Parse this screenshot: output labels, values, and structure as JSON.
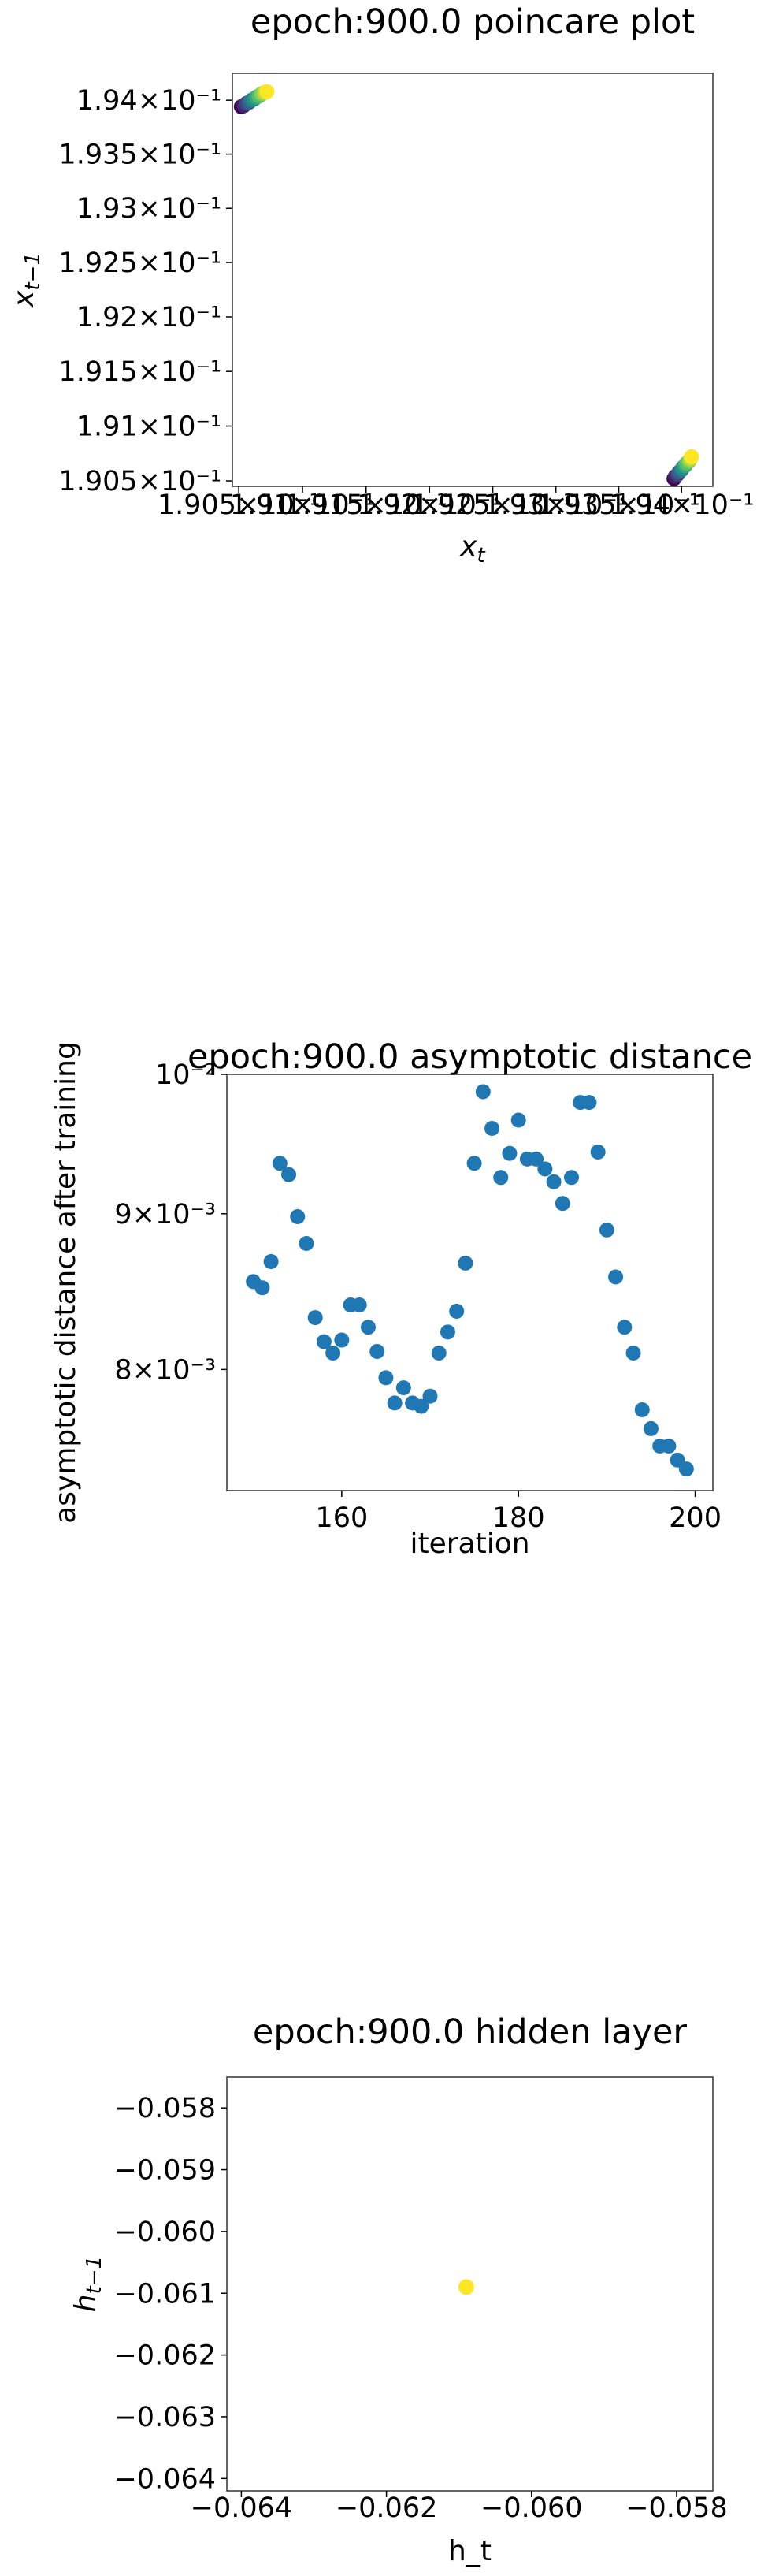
{
  "chart_data": [
    {
      "type": "scatter",
      "title": "epoch:900.0 poincare plot",
      "xlabel": "x_t",
      "ylabel": "x_{t-1}",
      "xscale": "log",
      "yscale": "log",
      "xlim": [
        0.19045,
        0.19425
      ],
      "ylim": [
        0.19045,
        0.19425
      ],
      "x_tick_values": [
        0.1905,
        0.191,
        0.1915,
        0.192,
        0.1925,
        0.193,
        0.1935,
        0.194
      ],
      "y_tick_values": [
        0.1905,
        0.191,
        0.1915,
        0.192,
        0.1925,
        0.193,
        0.1935,
        0.194
      ],
      "x_tick_labels": [
        "1.905×10⁻¹",
        "1.91×10⁻¹",
        "1.915×10⁻¹",
        "1.92×10⁻¹",
        "1.925×10⁻¹",
        "1.93×10⁻¹",
        "1.935×10⁻¹",
        "1.94×10⁻¹"
      ],
      "y_tick_labels": [
        "1.905×10⁻¹",
        "1.91×10⁻¹",
        "1.915×10⁻¹",
        "1.92×10⁻¹",
        "1.925×10⁻¹",
        "1.93×10⁻¹",
        "1.935×10⁻¹",
        "1.94×10⁻¹"
      ],
      "colormap": "viridis",
      "series": [
        {
          "points": [
            {
              "x": 0.19052,
              "y": 0.19394,
              "c": 0.0
            },
            {
              "x": 0.19054,
              "y": 0.19395,
              "c": 0.1
            },
            {
              "x": 0.19056,
              "y": 0.19397,
              "c": 0.2
            },
            {
              "x": 0.19058,
              "y": 0.19398,
              "c": 0.3
            },
            {
              "x": 0.1906,
              "y": 0.194,
              "c": 0.4
            },
            {
              "x": 0.19062,
              "y": 0.19401,
              "c": 0.5
            },
            {
              "x": 0.19064,
              "y": 0.19403,
              "c": 0.6
            },
            {
              "x": 0.19066,
              "y": 0.19404,
              "c": 0.7
            },
            {
              "x": 0.19068,
              "y": 0.19406,
              "c": 0.8
            },
            {
              "x": 0.1907,
              "y": 0.19407,
              "c": 0.9
            },
            {
              "x": 0.19072,
              "y": 0.19408,
              "c": 1.0
            },
            {
              "x": 0.19394,
              "y": 0.19052,
              "c": 0.0
            },
            {
              "x": 0.19395,
              "y": 0.19054,
              "c": 0.1
            },
            {
              "x": 0.19397,
              "y": 0.19056,
              "c": 0.2
            },
            {
              "x": 0.19398,
              "y": 0.19058,
              "c": 0.3
            },
            {
              "x": 0.194,
              "y": 0.1906,
              "c": 0.4
            },
            {
              "x": 0.19401,
              "y": 0.19062,
              "c": 0.5
            },
            {
              "x": 0.19403,
              "y": 0.19064,
              "c": 0.6
            },
            {
              "x": 0.19404,
              "y": 0.19066,
              "c": 0.7
            },
            {
              "x": 0.19406,
              "y": 0.19068,
              "c": 0.8
            },
            {
              "x": 0.19407,
              "y": 0.1907,
              "c": 0.9
            },
            {
              "x": 0.19408,
              "y": 0.19072,
              "c": 1.0
            }
          ]
        }
      ]
    },
    {
      "type": "scatter",
      "title": "epoch:900.0 asymptotic distance",
      "xlabel": "iteration",
      "ylabel": "asymptotic distance after training",
      "yscale": "log",
      "xlim": [
        147,
        202
      ],
      "ylim": [
        0.0073,
        0.01
      ],
      "x_tick_values": [
        160,
        180,
        200
      ],
      "x_tick_labels": [
        "160",
        "180",
        "200"
      ],
      "y_tick_values": [
        0.008,
        0.009,
        0.01
      ],
      "y_tick_labels": [
        "8×10⁻³",
        "9×10⁻³",
        "10⁻²"
      ],
      "marker_color": "#1f77b4",
      "x": [
        150,
        151,
        152,
        153,
        154,
        155,
        156,
        157,
        158,
        159,
        160,
        161,
        162,
        163,
        164,
        165,
        166,
        167,
        168,
        169,
        170,
        171,
        172,
        173,
        174,
        175,
        176,
        177,
        178,
        179,
        180,
        181,
        182,
        183,
        184,
        185,
        186,
        187,
        188,
        189,
        190,
        191,
        192,
        193,
        194,
        195,
        196,
        197,
        198,
        199
      ],
      "y": [
        0.00855,
        0.00851,
        0.00868,
        0.00935,
        0.00927,
        0.00898,
        0.0088,
        0.00832,
        0.00817,
        0.0081,
        0.00818,
        0.0084,
        0.0084,
        0.00826,
        0.00811,
        0.00795,
        0.0078,
        0.00789,
        0.0078,
        0.00778,
        0.00784,
        0.0081,
        0.00823,
        0.00836,
        0.00867,
        0.00935,
        0.00987,
        0.0096,
        0.00925,
        0.00942,
        0.00966,
        0.00938,
        0.00938,
        0.00931,
        0.00922,
        0.00907,
        0.00925,
        0.00979,
        0.00979,
        0.00943,
        0.00889,
        0.00858,
        0.00826,
        0.0081,
        0.00776,
        0.00765,
        0.00755,
        0.00755,
        0.00747,
        0.00742
      ]
    },
    {
      "type": "scatter",
      "title": "epoch:900.0 hidden layer",
      "xlabel": "h_t",
      "ylabel": "h_{t-1}",
      "xlim": [
        -0.0642,
        -0.0575
      ],
      "ylim": [
        -0.0642,
        -0.0575
      ],
      "x_tick_values": [
        -0.064,
        -0.062,
        -0.06,
        -0.058
      ],
      "x_tick_labels": [
        "−0.064",
        "−0.062",
        "−0.060",
        "−0.058"
      ],
      "y_tick_values": [
        -0.058,
        -0.059,
        -0.06,
        -0.061,
        -0.062,
        -0.063,
        -0.064
      ],
      "y_tick_labels": [
        "−0.058",
        "−0.059",
        "−0.060",
        "−0.061",
        "−0.062",
        "−0.063",
        "−0.064"
      ],
      "marker_color": "#fde725",
      "x": [
        -0.0609
      ],
      "y": [
        -0.0609
      ]
    }
  ]
}
